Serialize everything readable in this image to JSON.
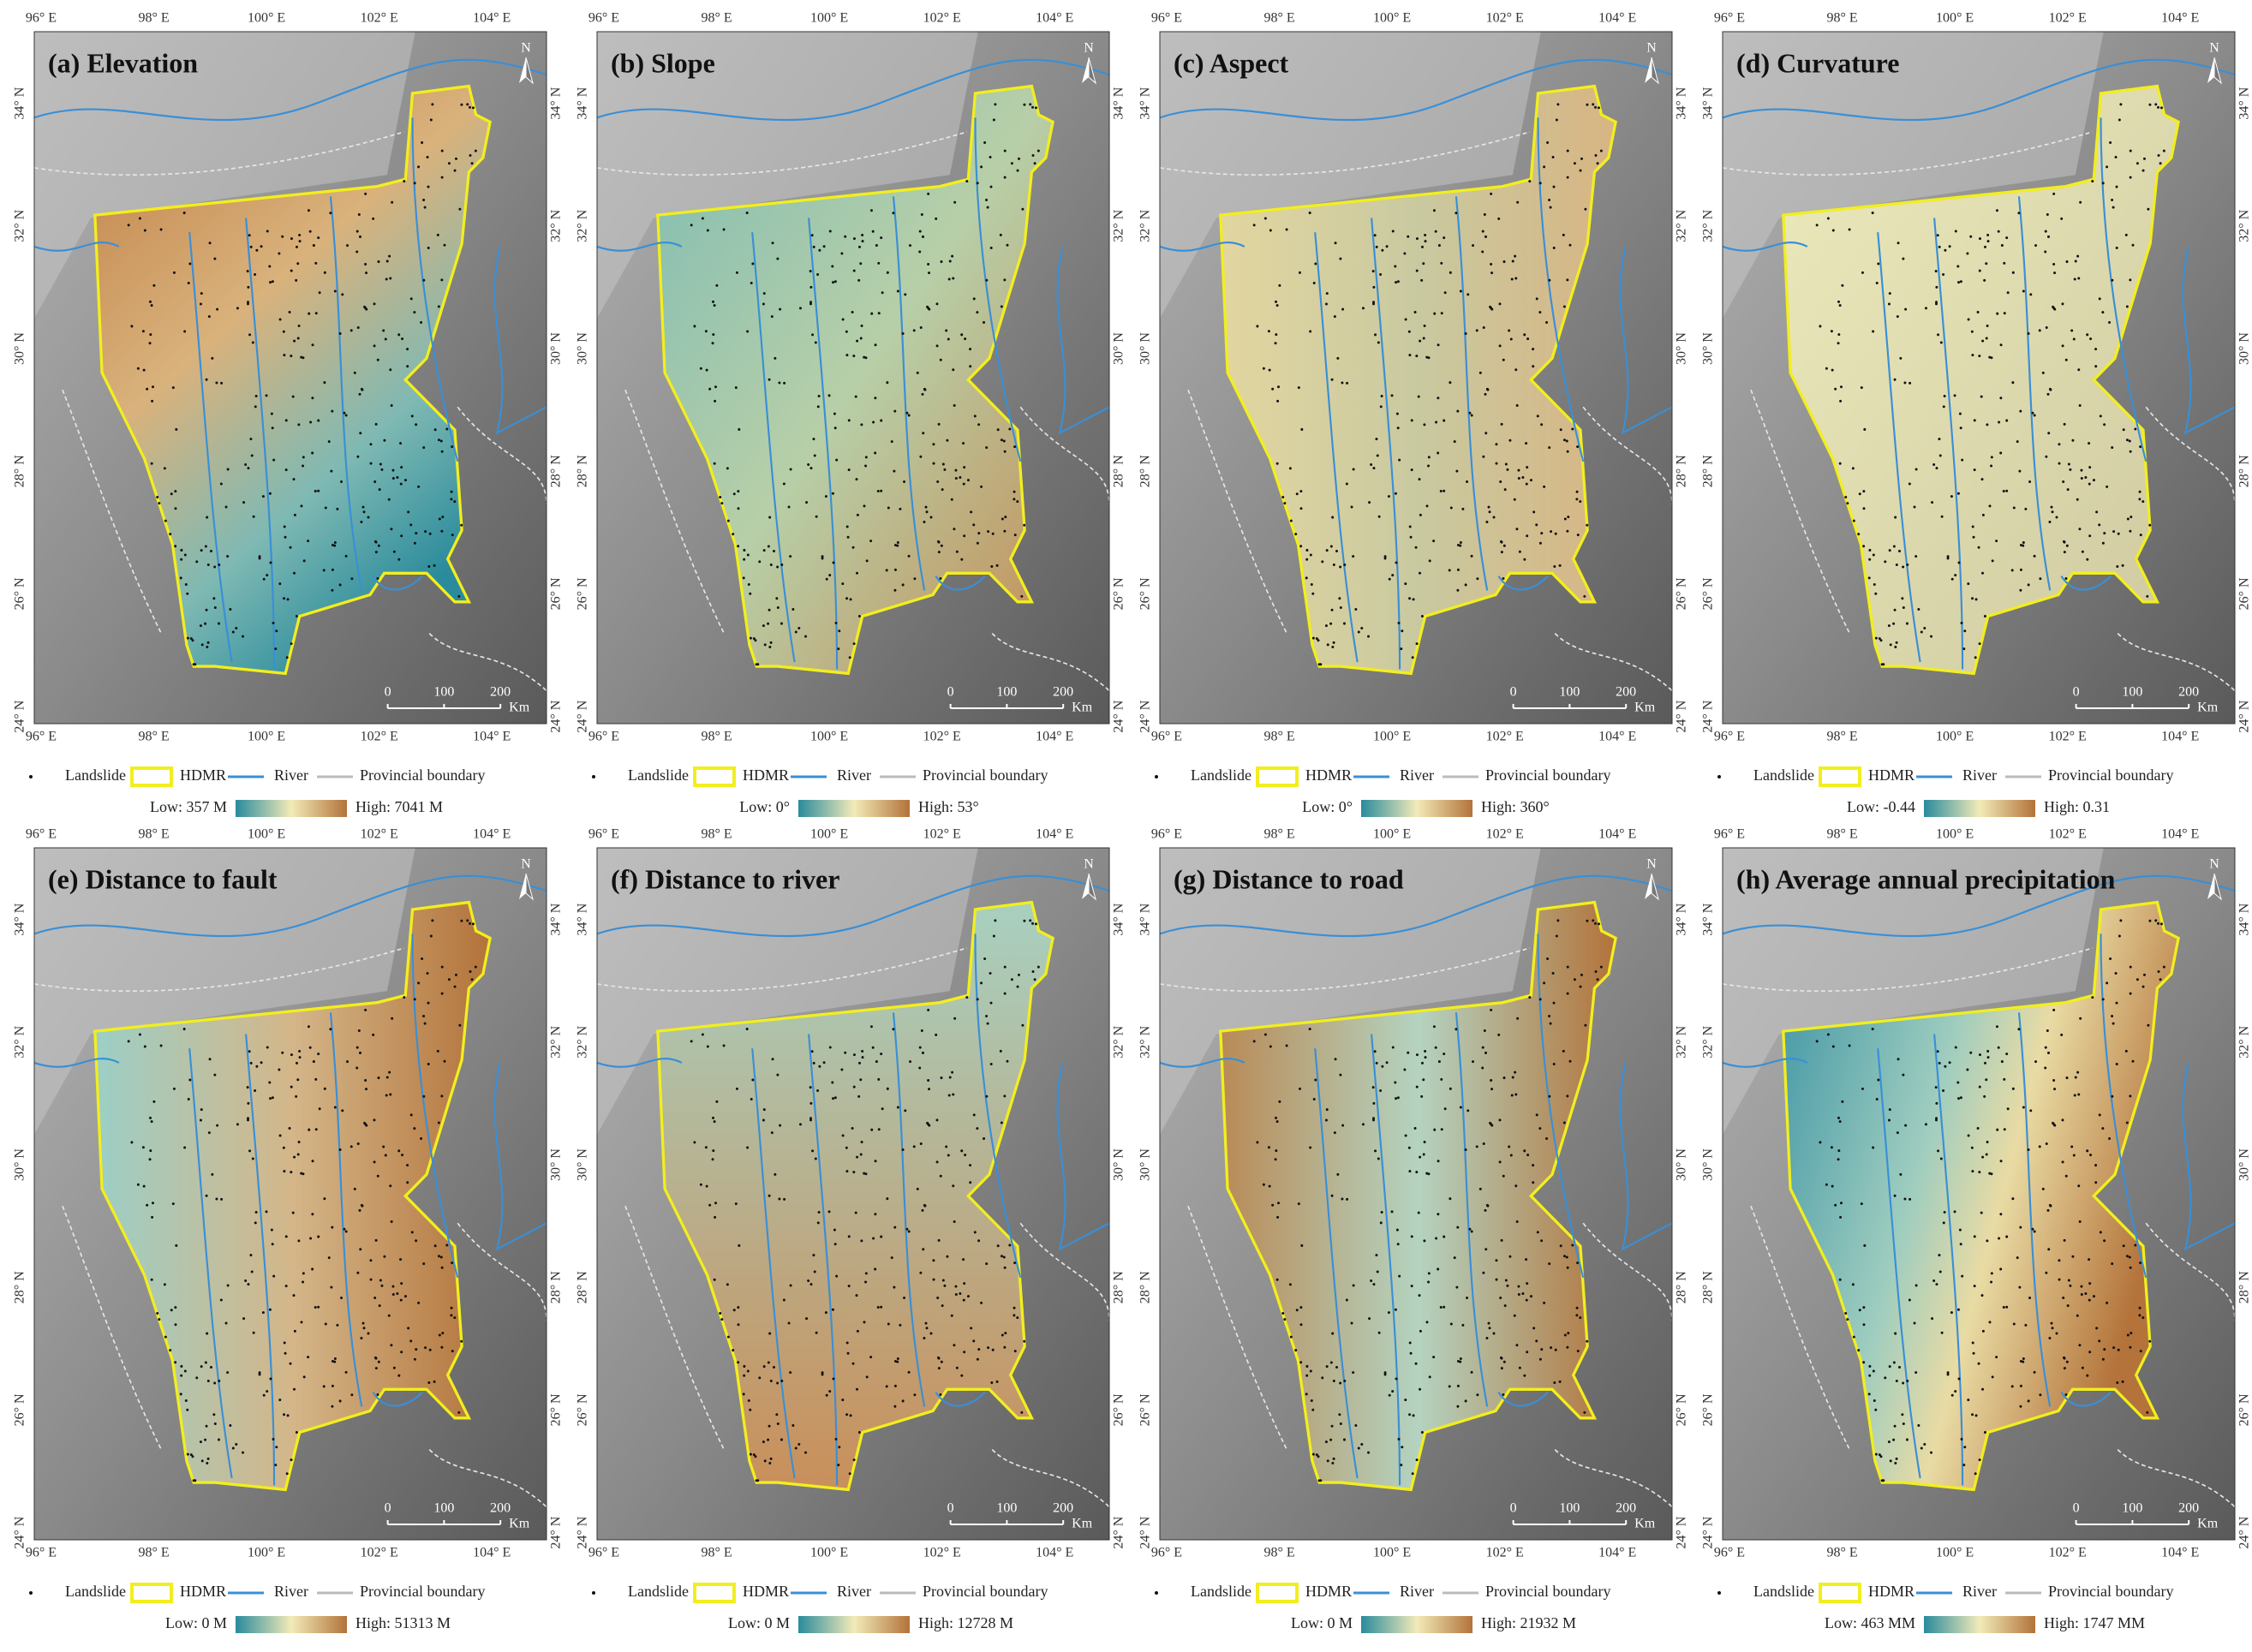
{
  "panels": [
    {
      "title": "(a) Elevation",
      "low": "Low: 357 M",
      "high": "High: 7041 M"
    },
    {
      "title": "(b) Slope",
      "low": "Low: 0°",
      "high": "High: 53°"
    },
    {
      "title": "(c) Aspect",
      "low": "Low: 0°",
      "high": "High: 360°"
    },
    {
      "title": "(d) Curvature",
      "low": "Low: -0.44",
      "high": "High: 0.31"
    },
    {
      "title": "(e) Distance to fault",
      "low": "Low: 0 M",
      "high": "High: 51313 M"
    },
    {
      "title": "(f) Distance to river",
      "low": "Low: 0 M",
      "high": "High: 12728 M"
    },
    {
      "title": "(g) Distance to road",
      "low": "Low: 0 M",
      "high": "High: 21932 M"
    },
    {
      "title": "(h) Average annual precipitation",
      "low": "Low: 463 MM",
      "high": "High: 1747 MM"
    }
  ],
  "lon_labels": [
    "96° E",
    "98° E",
    "100° E",
    "102° E",
    "104° E"
  ],
  "lat_labels": [
    "34° N",
    "32° N",
    "30° N",
    "28° N",
    "26° N",
    "24° N"
  ],
  "north": "N",
  "scale_labels": [
    "0",
    "100",
    "200",
    "Km"
  ],
  "legend": [
    "Landslide",
    "HDMR",
    "River",
    "Provincial boundary"
  ]
}
